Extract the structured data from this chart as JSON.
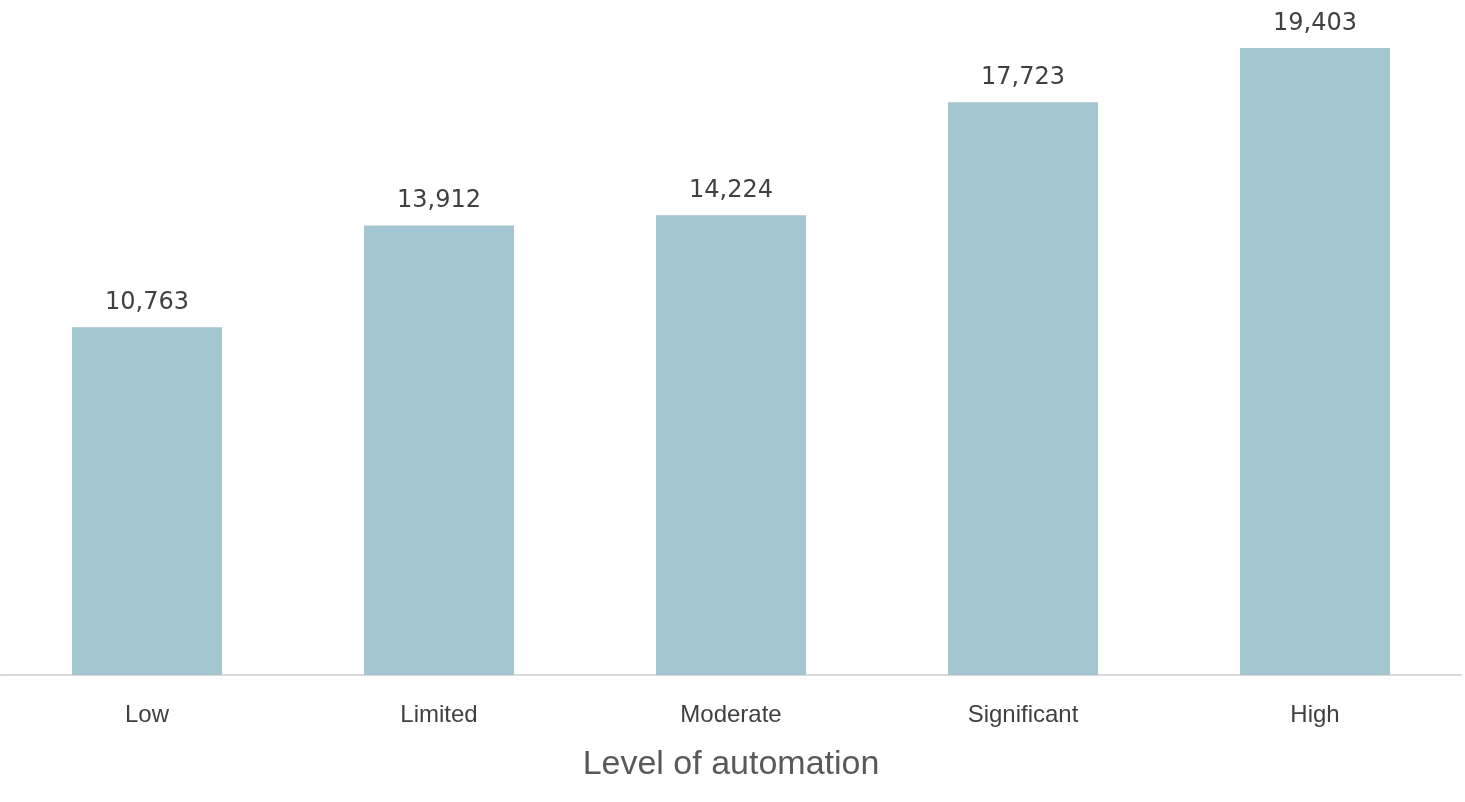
{
  "chart_data": {
    "type": "bar",
    "xlabel": "Level of automation",
    "categories": [
      "Low",
      "Limited",
      "Moderate",
      "Significant",
      "High"
    ],
    "values": [
      10763,
      13912,
      14224,
      17723,
      19403
    ],
    "value_labels": [
      "10,763",
      "13,912",
      "14,224",
      "17,723",
      "19,403"
    ],
    "color": "#a4c6d1"
  }
}
